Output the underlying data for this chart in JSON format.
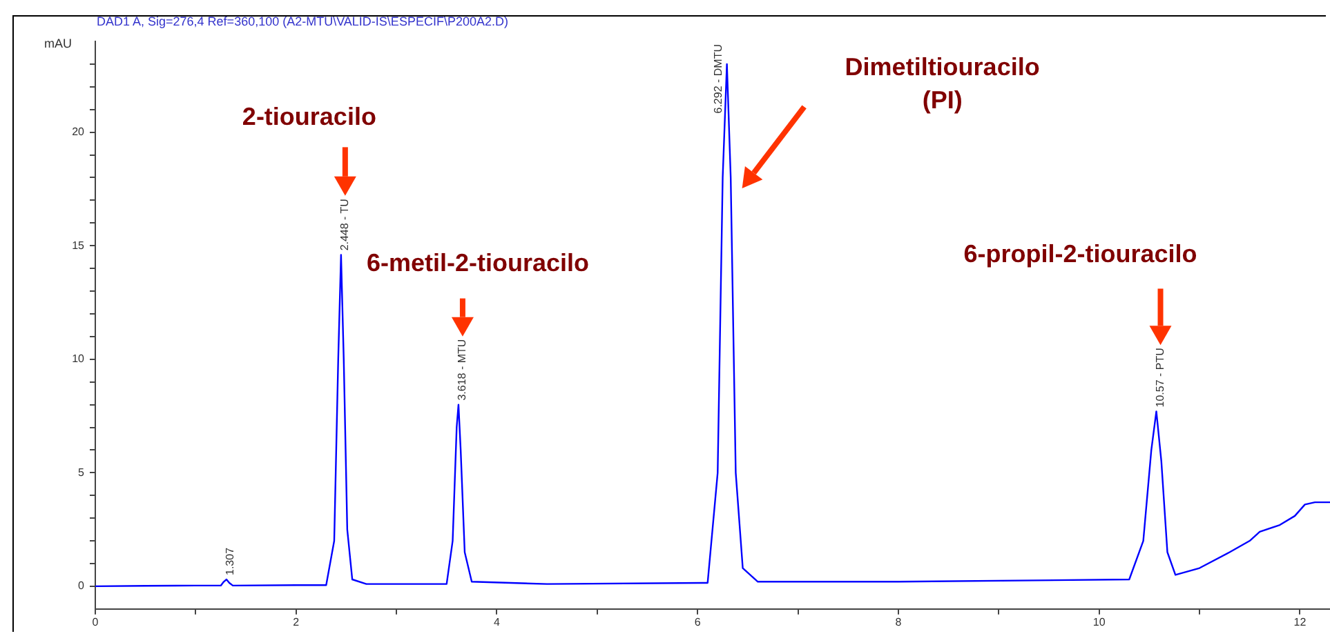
{
  "chart_data": {
    "type": "line",
    "title": "DAD1 A, Sig=276,4 Ref=360,100 (A2-MTU\\VALID-IS\\ESPECIF\\P200A2.D)",
    "ylabel": "mAU",
    "x": [
      0,
      0.5,
      1.0,
      1.25,
      1.28,
      1.307,
      1.335,
      1.37,
      2.0,
      2.3,
      2.38,
      2.42,
      2.448,
      2.475,
      2.51,
      2.56,
      2.7,
      3.5,
      3.56,
      3.6,
      3.618,
      3.64,
      3.68,
      3.75,
      4.5,
      6.1,
      6.2,
      6.25,
      6.292,
      6.33,
      6.38,
      6.45,
      6.6,
      8.0,
      10.3,
      10.44,
      10.52,
      10.57,
      10.62,
      10.68,
      10.76,
      11.0,
      11.3,
      11.5,
      11.6,
      11.8,
      11.95,
      12.05,
      12.15,
      12.3
    ],
    "series": [
      {
        "color": "#0000ff",
        "values": [
          0.0,
          0.02,
          0.03,
          0.03,
          0.2,
          0.3,
          0.15,
          0.03,
          0.05,
          0.05,
          2,
          10,
          14.6,
          10,
          2.5,
          0.3,
          0.1,
          0.1,
          2,
          7,
          8.0,
          6,
          1.5,
          0.2,
          0.1,
          0.15,
          5,
          18,
          23.0,
          18,
          5,
          0.8,
          0.2,
          0.2,
          0.3,
          2,
          6,
          7.7,
          5.5,
          1.5,
          0.5,
          0.8,
          1.5,
          2.0,
          2.4,
          2.7,
          3.1,
          3.6,
          3.7,
          3.7
        ]
      }
    ],
    "xlim": [
      0,
      12.3
    ],
    "xticks": [
      0,
      {
        "value": 1,
        "label": null
      },
      2,
      {
        "value": 3,
        "label": null
      },
      4,
      {
        "value": 5,
        "label": null
      },
      6,
      {
        "value": 7,
        "label": null
      },
      8,
      {
        "value": 9,
        "label": null
      },
      10,
      {
        "value": 11,
        "label": null
      },
      12
    ],
    "ylim": [
      -1,
      24
    ],
    "yticks": [
      0,
      {
        "value": 1,
        "label": null
      },
      {
        "value": 2,
        "label": null
      },
      {
        "value": 3,
        "label": null
      },
      {
        "value": 4,
        "label": null
      },
      5,
      {
        "value": 6,
        "label": null
      },
      {
        "value": 7,
        "label": null
      },
      {
        "value": 8,
        "label": null
      },
      {
        "value": 9,
        "label": null
      },
      10,
      {
        "value": 11,
        "label": null
      },
      {
        "value": 12,
        "label": null
      },
      {
        "value": 13,
        "label": null
      },
      {
        "value": 14,
        "label": null
      },
      15,
      {
        "value": 16,
        "label": null
      },
      {
        "value": 17,
        "label": null
      },
      {
        "value": 18,
        "label": null
      },
      {
        "value": 19,
        "label": null
      },
      20,
      {
        "value": 21,
        "label": null
      },
      {
        "value": 22,
        "label": null
      },
      {
        "value": 23,
        "label": null
      }
    ],
    "annotations": [
      {
        "text": "1.307",
        "x": 1.307,
        "y": 0.3
      },
      {
        "text": "2.448 - TU",
        "x": 2.448,
        "y": 14.6
      },
      {
        "text": "3.618 - MTU",
        "x": 3.618,
        "y": 8.0
      },
      {
        "text": "6.292 - DMTU",
        "x": 6.292,
        "y": 23.0
      },
      {
        "text": "10.57 - PTU",
        "x": 10.57,
        "y": 7.7
      },
      "2-tiouracilo",
      "6-metil-2-tiouracilo",
      "Dimetiltiouracilo\n(PI)",
      "6-propil-2-tiouracilo"
    ],
    "grid": false,
    "legend": false,
    "marker": "none",
    "line_style": "solid"
  }
}
